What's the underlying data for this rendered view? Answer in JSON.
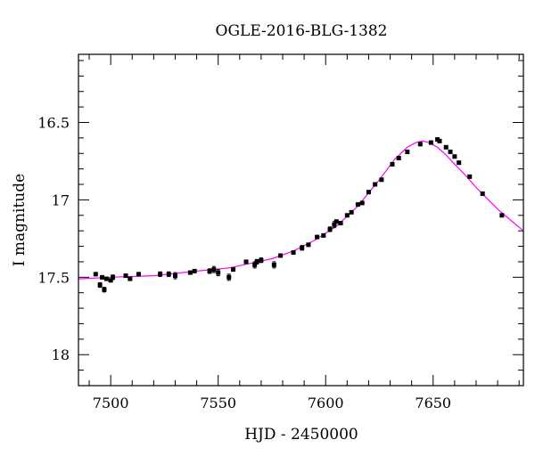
{
  "chart_data": {
    "type": "scatter",
    "title": "OGLE-2016-BLG-1382",
    "xlabel": "HJD - 2450000",
    "ylabel": "I magnitude",
    "xlim": [
      7485,
      7692
    ],
    "ylim": [
      18.2,
      16.06
    ],
    "y_inverted": true,
    "x_ticks": [
      7500,
      7550,
      7600,
      7650
    ],
    "x_tick_labels": [
      "7500",
      "7550",
      "7600",
      "7650"
    ],
    "y_ticks": [
      16.5,
      17,
      17.5,
      18
    ],
    "y_tick_labels": [
      "16.5",
      "17",
      "17.5",
      "18"
    ],
    "grid": false,
    "colors": {
      "data": "#000000",
      "model": "#ff00ff",
      "axes": "#000000"
    },
    "series": [
      {
        "type": "errorbar",
        "x": [
          7493,
          7495,
          7496,
          7497,
          7498,
          7500,
          7501,
          7507,
          7509,
          7513,
          7523,
          7527,
          7530,
          7537,
          7539,
          7546,
          7548,
          7550,
          7555,
          7557,
          7563,
          7567,
          7568,
          7570,
          7576,
          7579,
          7585,
          7589,
          7592,
          7596,
          7599,
          7602,
          7604,
          7605,
          7607,
          7610,
          7612,
          7615,
          7617,
          7620,
          7623,
          7626,
          7631,
          7634,
          7638,
          7644,
          7649,
          7652,
          7653,
          7656,
          7658,
          7660,
          7662,
          7667,
          7673,
          7682
        ],
        "y": [
          17.48,
          17.55,
          17.5,
          17.58,
          17.51,
          17.52,
          17.5,
          17.49,
          17.51,
          17.48,
          17.48,
          17.48,
          17.49,
          17.47,
          17.46,
          17.46,
          17.45,
          17.47,
          17.5,
          17.45,
          17.4,
          17.42,
          17.4,
          17.39,
          17.42,
          17.36,
          17.34,
          17.31,
          17.29,
          17.24,
          17.23,
          17.19,
          17.16,
          17.14,
          17.15,
          17.1,
          17.08,
          17.03,
          17.02,
          16.95,
          16.9,
          16.87,
          16.77,
          16.73,
          16.69,
          16.64,
          16.63,
          16.61,
          16.62,
          16.66,
          16.69,
          16.72,
          16.76,
          16.85,
          16.96,
          17.1
        ],
        "err": [
          0.01,
          0.015,
          0.01,
          0.015,
          0.01,
          0.01,
          0.015,
          0.01,
          0.01,
          0.01,
          0.015,
          0.015,
          0.02,
          0.01,
          0.01,
          0.015,
          0.02,
          0.02,
          0.02,
          0.01,
          0.01,
          0.02,
          0.015,
          0.015,
          0.02,
          0.01,
          0.01,
          0.015,
          0.01,
          0.01,
          0.01,
          0.015,
          0.02,
          0.01,
          0.01,
          0.01,
          0.01,
          0.01,
          0.01,
          0.01,
          0.01,
          0.01,
          0.01,
          0.01,
          0.01,
          0.01,
          0.01,
          0.01,
          0.01,
          0.01,
          0.01,
          0.01,
          0.01,
          0.01,
          0.01,
          0.01
        ]
      },
      {
        "type": "line",
        "x": [
          7485,
          7500,
          7520,
          7540,
          7555,
          7565,
          7575,
          7585,
          7595,
          7605,
          7615,
          7625,
          7632,
          7638,
          7642,
          7645,
          7648,
          7652,
          7656,
          7660,
          7665,
          7670,
          7675,
          7680,
          7686,
          7692
        ],
        "y": [
          17.51,
          17.5,
          17.49,
          17.46,
          17.44,
          17.41,
          17.38,
          17.33,
          17.26,
          17.17,
          17.04,
          16.87,
          16.74,
          16.66,
          16.63,
          16.62,
          16.63,
          16.66,
          16.71,
          16.77,
          16.84,
          16.92,
          16.99,
          17.06,
          17.13,
          17.2
        ]
      }
    ]
  }
}
